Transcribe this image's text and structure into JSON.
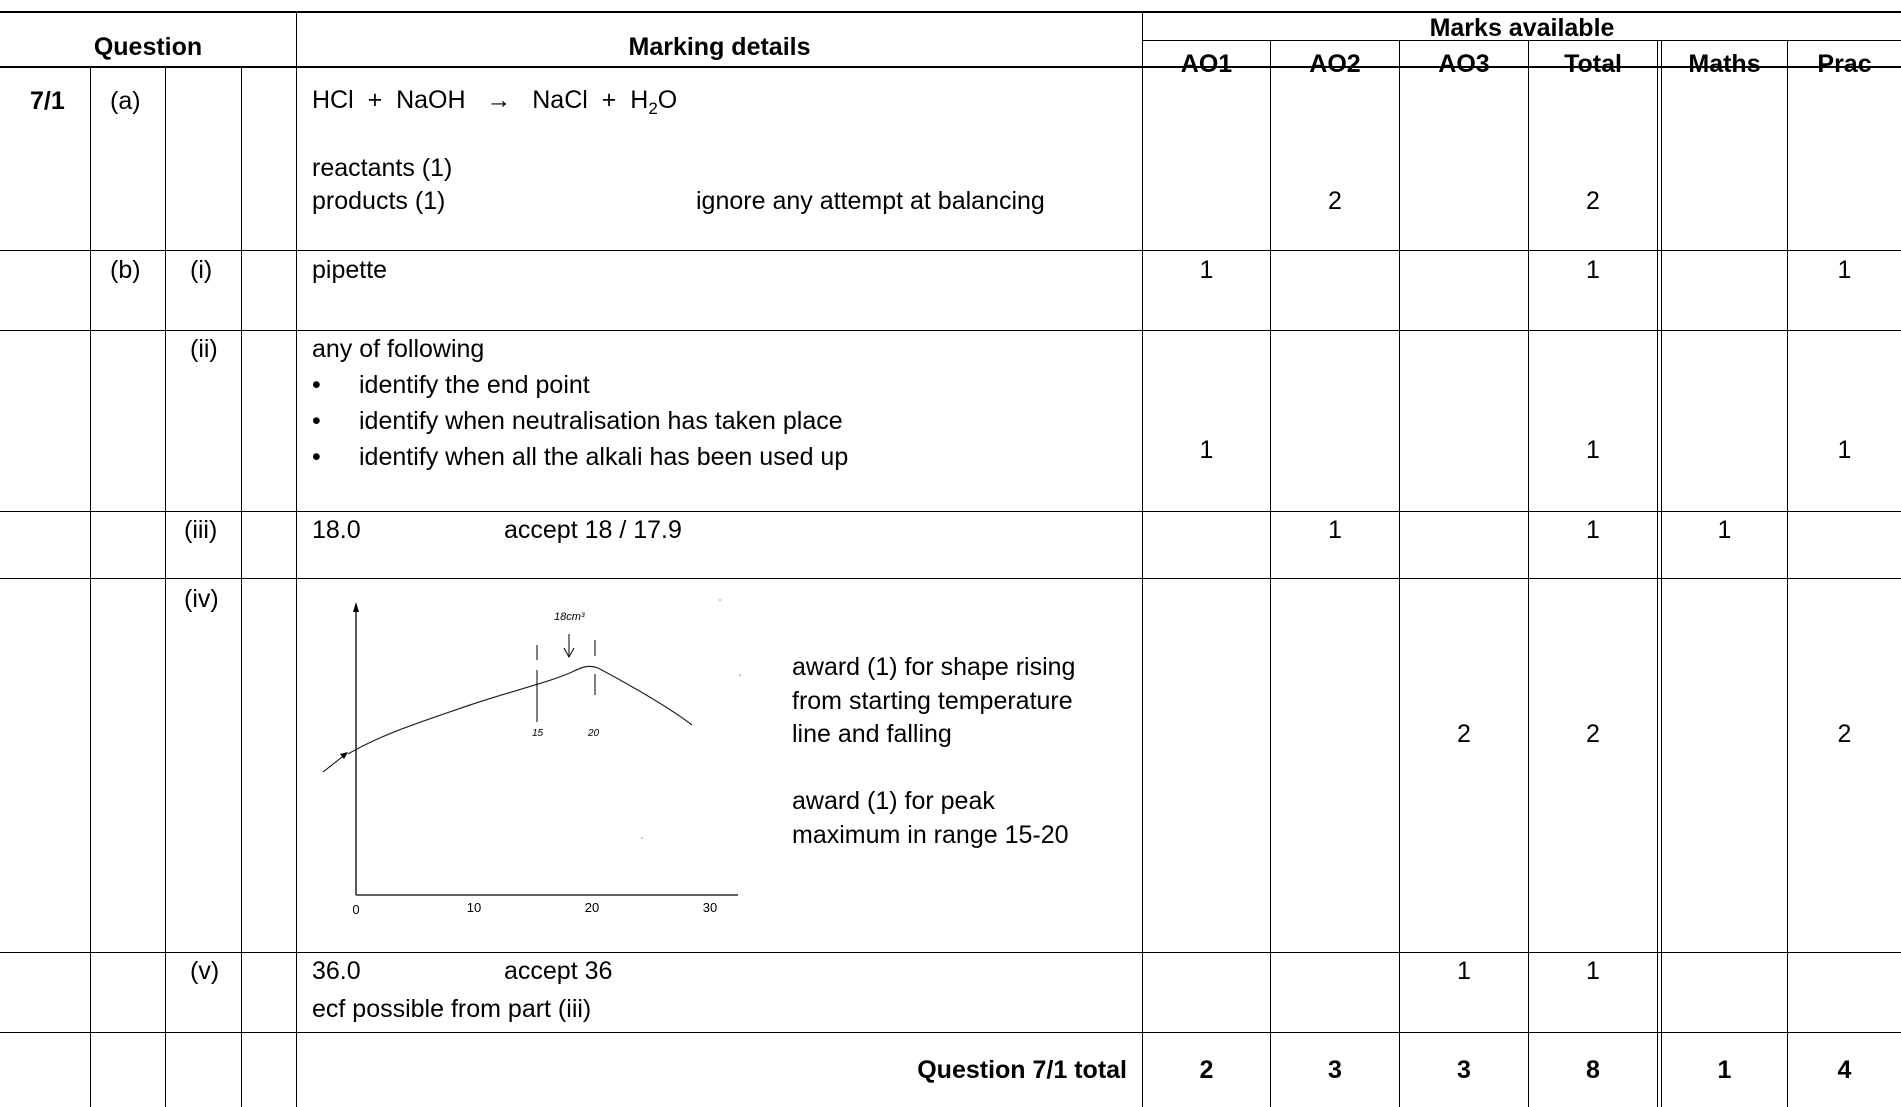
{
  "headers": {
    "question": "Question",
    "marking_details": "Marking details",
    "marks_available": "Marks available",
    "ao1": "AO1",
    "ao2": "AO2",
    "ao3": "AO3",
    "total": "Total",
    "maths": "Maths",
    "prac": "Prac"
  },
  "rows": {
    "a": {
      "question": "7/1",
      "part": "(a)",
      "equation": {
        "hcl": "HCl",
        "plus1": "+",
        "naoh": "NaOH",
        "arrow": "→",
        "nacl": "NaCl",
        "plus2": "+",
        "h": "H",
        "two": "2",
        "o": "O"
      },
      "line1": "reactants  (1)",
      "line2": "products  (1)",
      "note": "ignore any attempt at balancing",
      "ao2": "2",
      "total": "2"
    },
    "b_i": {
      "part": "(b)",
      "sub": "(i)",
      "detail": "pipette",
      "ao1": "1",
      "total": "1",
      "prac": "1"
    },
    "b_ii": {
      "sub": "(ii)",
      "intro": "any of following",
      "bullets": [
        "identify the end point",
        "identify when neutralisation has taken place",
        "identify when all the alkali has been used up"
      ],
      "ao1": "1",
      "total": "1",
      "prac": "1"
    },
    "b_iii": {
      "sub": "(iii)",
      "value": "18.0",
      "accept": "accept 18 / 17.9",
      "ao2": "1",
      "total": "1",
      "maths": "1"
    },
    "b_iv": {
      "sub": "(iv)",
      "award1": [
        "award (1) for shape rising",
        "from starting temperature",
        "line and falling"
      ],
      "award2": [
        "award (1) for peak",
        "maximum in range 15-20"
      ],
      "ao3": "2",
      "total": "2",
      "prac": "2",
      "graph": {
        "x_ticks": [
          "0",
          "10",
          "20",
          "30"
        ],
        "handwritten": {
          "label": "18cm³",
          "mark15": "15",
          "mark20": "20"
        }
      }
    },
    "b_v": {
      "sub": "(v)",
      "value": "36.0",
      "accept": "accept 36",
      "note": "ecf possible from part (iii)",
      "ao3": "1",
      "total": "1"
    },
    "totals": {
      "label": "Question 7/1 total",
      "ao1": "2",
      "ao2": "3",
      "ao3": "3",
      "total": "8",
      "maths": "1",
      "prac": "4"
    }
  }
}
